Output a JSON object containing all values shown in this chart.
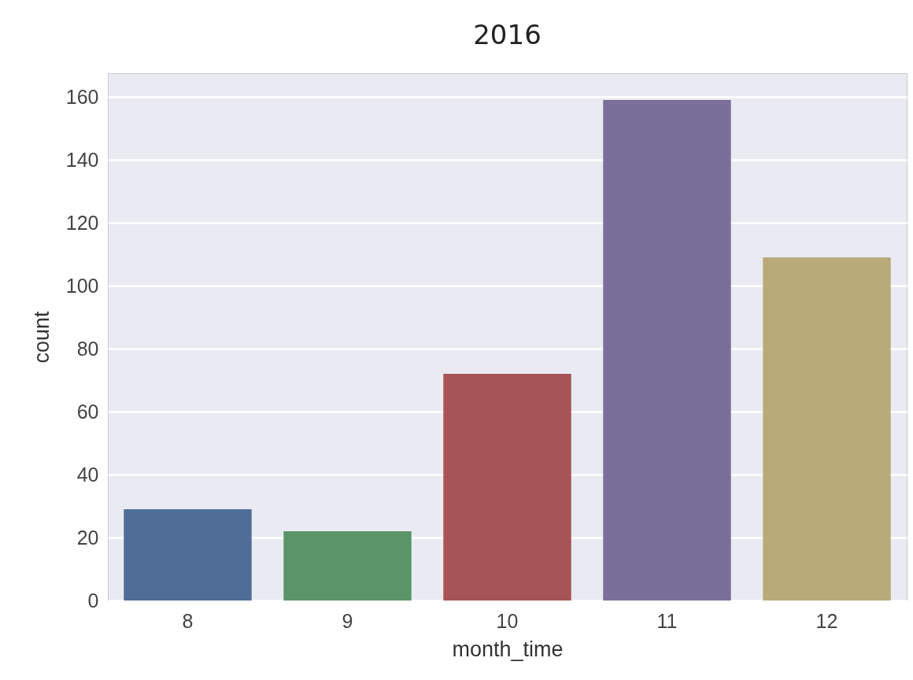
{
  "chart_data": {
    "type": "bar",
    "title": "2016",
    "xlabel": "month_time",
    "ylabel": "count",
    "categories": [
      "8",
      "9",
      "10",
      "11",
      "12"
    ],
    "values": [
      29,
      22,
      72,
      159,
      109
    ],
    "colors": [
      "#4f6d96",
      "#5a9469",
      "#a65457",
      "#7a6f9b",
      "#b8ab79"
    ],
    "ylim": [
      0,
      167.5
    ],
    "yticks": [
      0,
      20,
      40,
      60,
      80,
      100,
      120,
      140,
      160
    ],
    "grid": "y"
  }
}
